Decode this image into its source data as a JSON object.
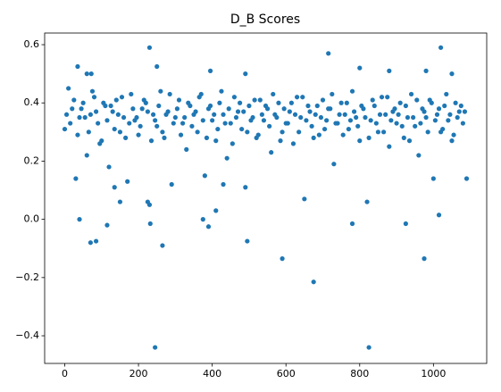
{
  "chart_data": {
    "type": "scatter",
    "title": "D_B Scores",
    "color": "#1f77b4",
    "xlim": [
      -54.5,
      1144.5
    ],
    "ylim": [
      -0.495,
      0.64
    ],
    "xticks": [
      0,
      200,
      400,
      600,
      800,
      1000
    ],
    "yticks": [
      {
        "value": -0.4,
        "label": "−0.4"
      },
      {
        "value": -0.2,
        "label": "−0.2"
      },
      {
        "value": 0,
        "label": "0.0"
      },
      0.2,
      0.4,
      0.6
    ],
    "x": [
      0,
      10,
      20,
      30,
      40,
      50,
      60,
      70,
      80,
      90,
      100,
      110,
      120,
      130,
      140,
      150,
      160,
      170,
      180,
      190,
      200,
      210,
      220,
      230,
      240,
      250,
      260,
      270,
      280,
      290,
      300,
      310,
      320,
      330,
      340,
      350,
      360,
      370,
      380,
      390,
      400,
      410,
      420,
      430,
      440,
      450,
      460,
      470,
      480,
      490,
      500,
      510,
      520,
      530,
      540,
      550,
      560,
      570,
      580,
      590,
      600,
      610,
      620,
      630,
      640,
      650,
      660,
      670,
      680,
      690,
      700,
      710,
      720,
      730,
      740,
      750,
      760,
      770,
      780,
      790,
      800,
      810,
      820,
      830,
      840,
      850,
      860,
      870,
      880,
      890,
      900,
      910,
      920,
      930,
      940,
      950,
      960,
      970,
      980,
      990,
      1000,
      1010,
      1020,
      1030,
      1040,
      1050,
      1060,
      1070,
      1080,
      1090,
      5,
      15,
      25,
      35,
      45,
      55,
      65,
      75,
      85,
      95,
      105,
      115,
      125,
      135,
      145,
      155,
      165,
      175,
      185,
      195,
      205,
      215,
      225,
      235,
      245,
      255,
      265,
      275,
      285,
      295,
      305,
      315,
      325,
      335,
      345,
      355,
      365,
      375,
      385,
      395,
      405,
      415,
      425,
      435,
      445,
      455,
      465,
      475,
      485,
      495,
      505,
      515,
      525,
      535,
      545,
      555,
      565,
      575,
      585,
      595,
      605,
      615,
      625,
      635,
      645,
      655,
      665,
      675,
      685,
      695,
      705,
      715,
      725,
      735,
      745,
      755,
      765,
      775,
      785,
      795,
      805,
      815,
      825,
      835,
      845,
      855,
      865,
      875,
      885,
      895,
      905,
      915,
      925,
      935,
      945,
      955,
      965,
      975,
      985,
      995,
      1005,
      1015,
      1025,
      1035,
      1045,
      1055,
      1065,
      1075,
      1085,
      230,
      245,
      250,
      265,
      35,
      70,
      85,
      115,
      40,
      495,
      590,
      675,
      715,
      825,
      975,
      1020,
      1015,
      925,
      395,
      490,
      800,
      880,
      980,
      1050,
      232,
      375,
      390,
      780,
      135,
      150,
      225,
      60,
      72,
      410,
      430
    ],
    "values": [
      0.31,
      0.45,
      0.38,
      0.14,
      0.35,
      0.4,
      0.22,
      0.36,
      0.42,
      0.33,
      0.27,
      0.39,
      0.18,
      0.37,
      0.41,
      0.3,
      0.35,
      0.13,
      0.43,
      0.34,
      0.29,
      0.38,
      0.4,
      0.05,
      0.36,
      0.32,
      0.44,
      0.28,
      0.37,
      0.12,
      0.35,
      0.41,
      0.33,
      0.24,
      0.39,
      0.36,
      0.3,
      0.43,
      0.15,
      0.38,
      0.34,
      0.27,
      0.4,
      0.36,
      0.21,
      0.33,
      0.42,
      0.37,
      0.31,
      0.11,
      0.39,
      0.35,
      0.28,
      0.41,
      0.34,
      0.38,
      0.23,
      0.36,
      0.4,
      0.3,
      0.33,
      0.37,
      0.26,
      0.42,
      0.35,
      0.07,
      0.39,
      0.32,
      0.36,
      0.29,
      0.41,
      0.34,
      0.38,
      0.19,
      0.33,
      0.4,
      0.36,
      0.31,
      0.44,
      0.35,
      0.27,
      0.38,
      0.06,
      0.34,
      0.39,
      0.3,
      0.42,
      0.36,
      0.25,
      0.37,
      0.33,
      0.4,
      0.28,
      0.35,
      0.43,
      0.32,
      0.22,
      0.38,
      0.35,
      0.41,
      0.14,
      0.36,
      0.3,
      0.39,
      0.34,
      0.27,
      0.4,
      0.37,
      0.33,
      0.14,
      0.36,
      0.33,
      0.41,
      0.29,
      0.38,
      0.35,
      0.3,
      0.44,
      0.37,
      0.26,
      0.4,
      0.34,
      0.39,
      0.31,
      0.36,
      0.42,
      0.28,
      0.33,
      0.38,
      0.35,
      0.32,
      0.41,
      0.37,
      0.27,
      0.34,
      0.39,
      0.3,
      0.36,
      0.43,
      0.33,
      0.38,
      0.29,
      0.35,
      0.4,
      0.32,
      0.37,
      0.42,
      0.34,
      0.28,
      0.39,
      0.36,
      0.31,
      0.44,
      0.33,
      0.38,
      0.26,
      0.35,
      0.4,
      0.37,
      0.3,
      0.34,
      0.41,
      0.29,
      0.36,
      0.39,
      0.32,
      0.43,
      0.35,
      0.27,
      0.38,
      0.33,
      0.4,
      0.36,
      0.3,
      0.42,
      0.34,
      0.37,
      0.28,
      0.39,
      0.35,
      0.31,
      0.38,
      0.43,
      0.33,
      0.36,
      0.29,
      0.4,
      0.34,
      0.37,
      0.32,
      0.39,
      0.35,
      0.28,
      0.41,
      0.33,
      0.36,
      0.3,
      0.42,
      0.34,
      0.38,
      0.36,
      0.32,
      0.39,
      0.27,
      0.35,
      0.41,
      0.33,
      0.37,
      0.3,
      0.4,
      0.34,
      0.38,
      0.31,
      0.43,
      0.36,
      0.29,
      0.35,
      0.39,
      0.37,
      0.59,
      -0.44,
      0.525,
      -0.09,
      0.525,
      -0.08,
      -0.075,
      -0.02,
      0.0,
      -0.075,
      -0.135,
      -0.215,
      0.57,
      -0.44,
      -0.135,
      0.59,
      0.015,
      -0.015,
      0.51,
      0.5,
      0.52,
      0.51,
      0.51,
      0.5,
      -0.015,
      0.0,
      -0.025,
      -0.015,
      0.11,
      0.06,
      0.06,
      0.5,
      0.5,
      0.03,
      0.12
    ]
  }
}
